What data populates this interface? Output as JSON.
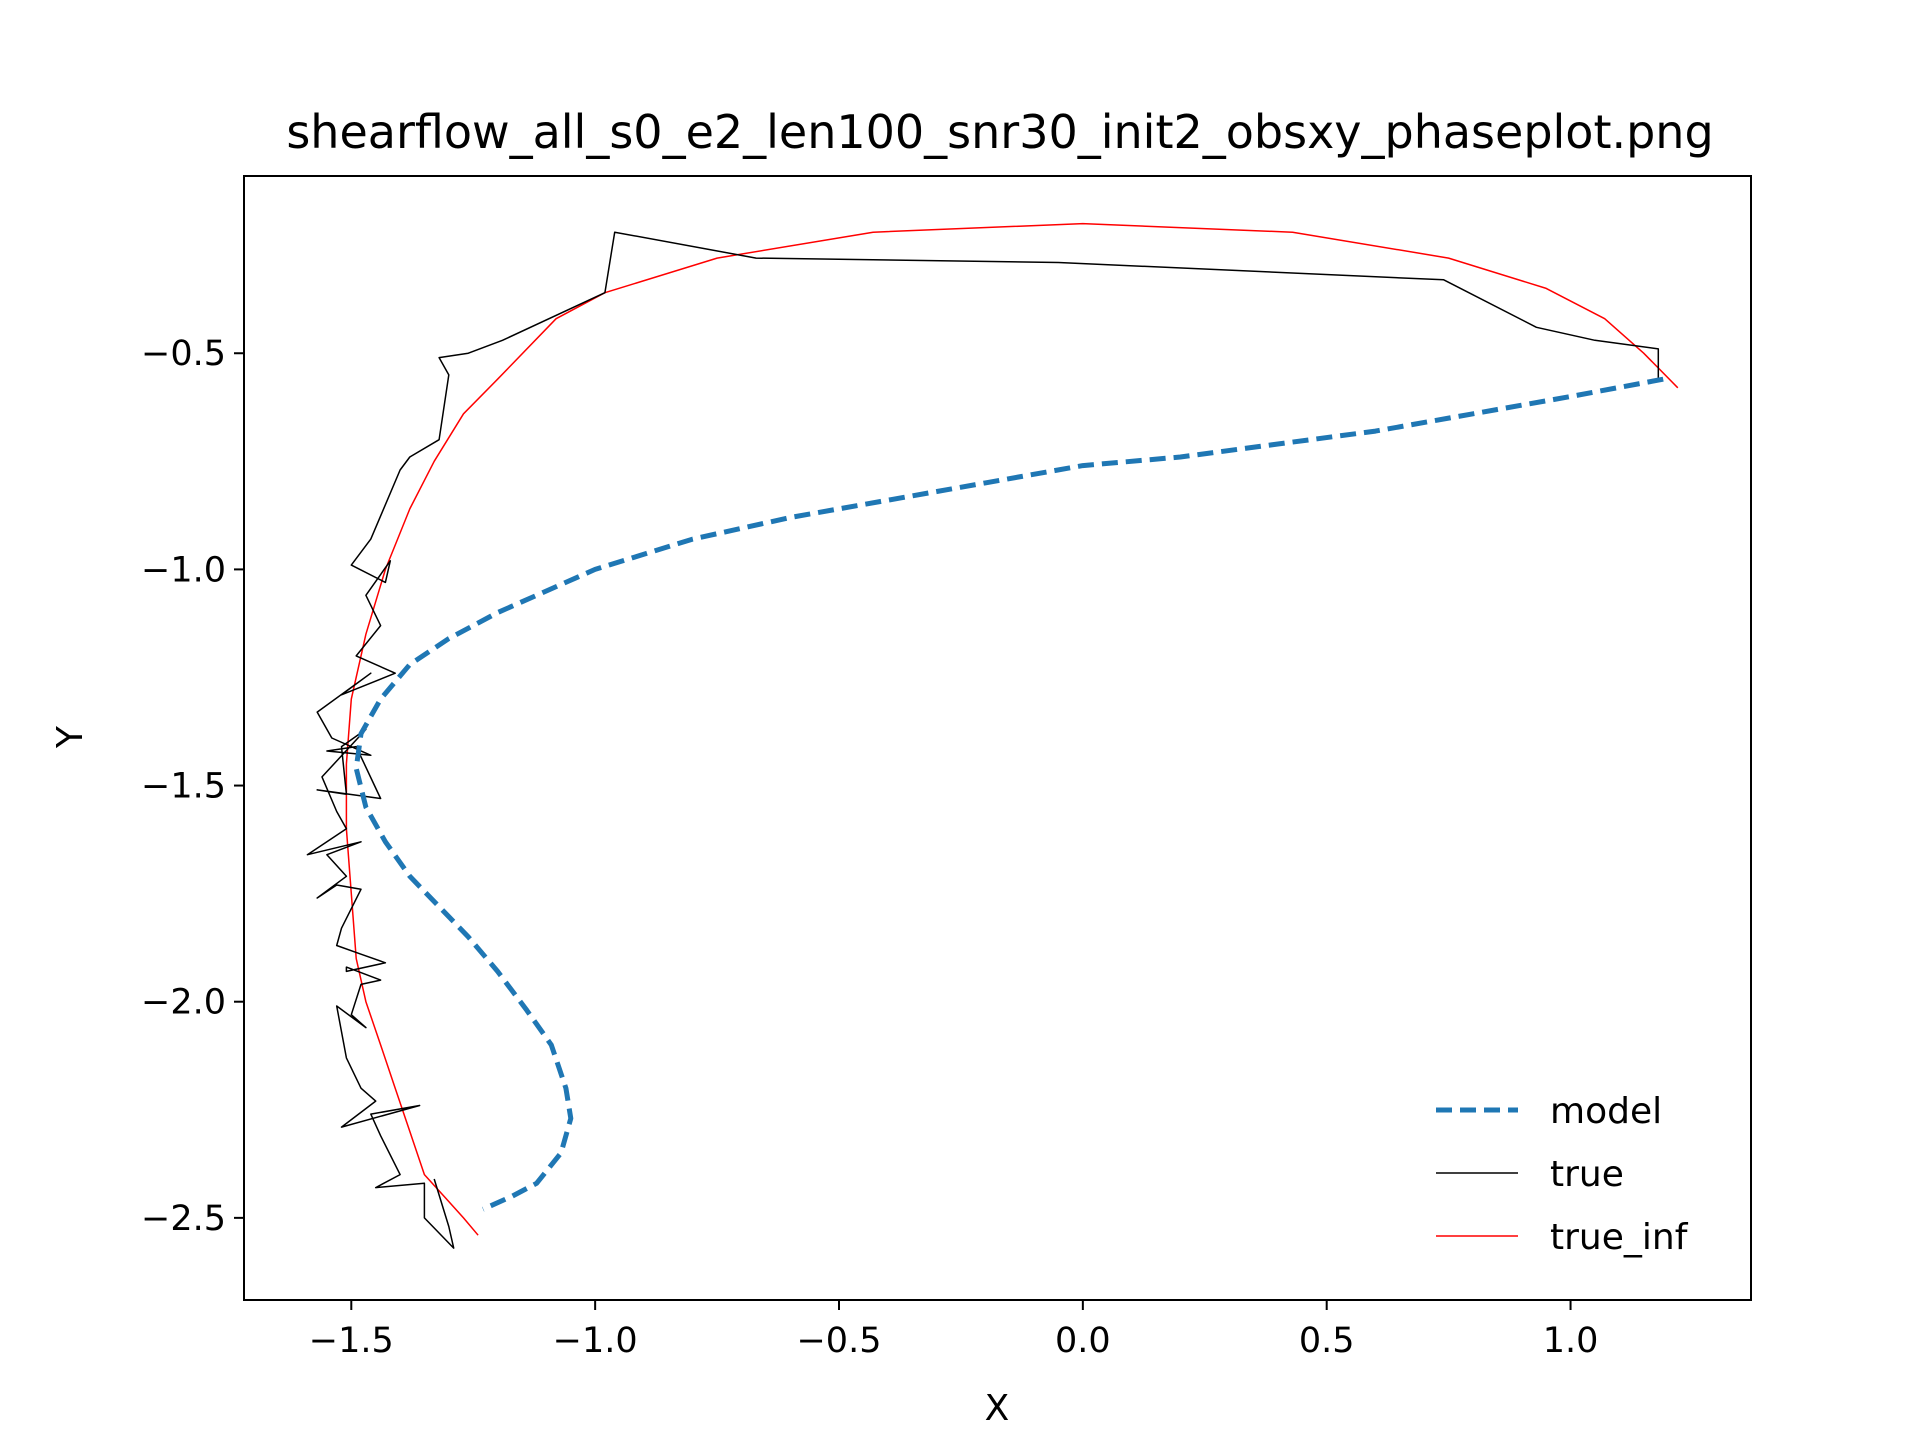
{
  "chart_data": {
    "type": "line",
    "title": "shearflow_all_s0_e2_len100_snr30_init2_obsxy_phaseplot.png",
    "xlabel": "X",
    "ylabel": "Y",
    "xlim": [
      -1.72,
      1.37
    ],
    "ylim": [
      -2.69,
      -0.09
    ],
    "xticks": [
      -1.5,
      -1.0,
      -0.5,
      0.0,
      0.5,
      1.0
    ],
    "xtick_labels": [
      "−1.5",
      "−1.0",
      "−0.5",
      "0.0",
      "0.5",
      "1.0"
    ],
    "yticks": [
      -0.5,
      -1.0,
      -1.5,
      -2.0,
      -2.5
    ],
    "ytick_labels": [
      "−0.5",
      "−1.0",
      "−1.5",
      "−2.0",
      "−2.5"
    ],
    "grid": false,
    "legend_position": "lower-right",
    "series": [
      {
        "name": "model",
        "color": "#1f77b4",
        "style": "dashed",
        "x": [
          1.19,
          1.0,
          0.8,
          0.6,
          0.4,
          0.2,
          0.0,
          -0.2,
          -0.4,
          -0.6,
          -0.8,
          -1.0,
          -1.2,
          -1.3,
          -1.38,
          -1.44,
          -1.48,
          -1.49,
          -1.47,
          -1.43,
          -1.38,
          -1.32,
          -1.26,
          -1.2,
          -1.14,
          -1.09,
          -1.06,
          -1.05,
          -1.07,
          -1.12,
          -1.17,
          -1.23
        ],
        "y": [
          -0.56,
          -0.6,
          -0.64,
          -0.68,
          -0.71,
          -0.74,
          -0.76,
          -0.8,
          -0.84,
          -0.88,
          -0.93,
          -1.0,
          -1.1,
          -1.16,
          -1.22,
          -1.3,
          -1.38,
          -1.46,
          -1.55,
          -1.63,
          -1.71,
          -1.78,
          -1.85,
          -1.93,
          -2.02,
          -2.1,
          -2.2,
          -2.27,
          -2.35,
          -2.42,
          -2.45,
          -2.48
        ]
      },
      {
        "name": "true",
        "color": "#000000",
        "style": "solid",
        "x": [
          1.18,
          1.18,
          1.05,
          0.93,
          0.74,
          -0.05,
          -0.67,
          -0.96,
          -0.98,
          -1.19,
          -1.26,
          -1.32,
          -1.3,
          -1.32,
          -1.38,
          -1.4,
          -1.46,
          -1.5,
          -1.43,
          -1.42,
          -1.47,
          -1.44,
          -1.49,
          -1.41,
          -1.52,
          -1.46,
          -1.57,
          -1.54,
          -1.46,
          -1.55,
          -1.49,
          -1.44,
          -1.57,
          -1.51,
          -1.52,
          -1.47,
          -1.56,
          -1.53,
          -1.51,
          -1.59,
          -1.48,
          -1.55,
          -1.51,
          -1.57,
          -1.53,
          -1.48,
          -1.52,
          -1.53,
          -1.48,
          -1.43,
          -1.51,
          -1.51,
          -1.44,
          -1.48,
          -1.5,
          -1.47,
          -1.53,
          -1.51,
          -1.48,
          -1.45,
          -1.52,
          -1.36,
          -1.46,
          -1.44,
          -1.4,
          -1.45,
          -1.35,
          -1.35,
          -1.29,
          -1.3,
          -1.33
        ],
        "y": [
          -0.56,
          -0.49,
          -0.47,
          -0.44,
          -0.33,
          -0.29,
          -0.28,
          -0.22,
          -0.36,
          -0.47,
          -0.5,
          -0.51,
          -0.55,
          -0.7,
          -0.74,
          -0.77,
          -0.93,
          -0.99,
          -1.03,
          -0.98,
          -1.06,
          -1.13,
          -1.2,
          -1.24,
          -1.29,
          -1.24,
          -1.33,
          -1.39,
          -1.43,
          -1.42,
          -1.41,
          -1.53,
          -1.51,
          -1.52,
          -1.41,
          -1.37,
          -1.48,
          -1.56,
          -1.6,
          -1.66,
          -1.63,
          -1.66,
          -1.71,
          -1.76,
          -1.73,
          -1.74,
          -1.83,
          -1.87,
          -1.89,
          -1.91,
          -1.93,
          -1.92,
          -1.95,
          -1.96,
          -2.03,
          -2.06,
          -2.01,
          -2.13,
          -2.2,
          -2.23,
          -2.29,
          -2.24,
          -2.26,
          -2.31,
          -2.4,
          -2.43,
          -2.42,
          -2.5,
          -2.57,
          -2.52,
          -2.41
        ]
      },
      {
        "name": "true_inf",
        "color": "#ff0000",
        "style": "solid",
        "x": [
          1.22,
          1.15,
          1.07,
          0.95,
          0.75,
          0.43,
          0.0,
          -0.43,
          -0.75,
          -0.98,
          -1.08,
          -1.2,
          -1.27,
          -1.33,
          -1.38,
          -1.43,
          -1.47,
          -1.5,
          -1.51,
          -1.51,
          -1.5,
          -1.49,
          -1.47,
          -1.44,
          -1.41,
          -1.38,
          -1.35,
          -1.31,
          -1.27,
          -1.24
        ],
        "y": [
          -0.58,
          -0.5,
          -0.42,
          -0.35,
          -0.28,
          -0.22,
          -0.2,
          -0.22,
          -0.28,
          -0.36,
          -0.42,
          -0.56,
          -0.64,
          -0.75,
          -0.86,
          -1.0,
          -1.15,
          -1.3,
          -1.45,
          -1.6,
          -1.75,
          -1.9,
          -2.0,
          -2.1,
          -2.2,
          -2.3,
          -2.4,
          -2.45,
          -2.5,
          -2.54
        ]
      }
    ]
  }
}
